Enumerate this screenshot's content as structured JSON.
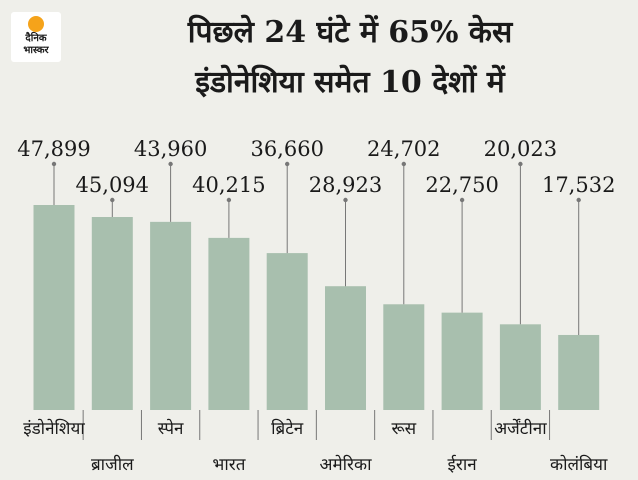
{
  "brand": {
    "logo_line1": "दैनिक",
    "logo_line2": "भास्कर"
  },
  "header": {
    "title_line1": "पिछले 24 घंटे में 65% केस",
    "title_line2": "इंडोनेशिया समेत 10 देशों में"
  },
  "colors": {
    "background": "#efefea",
    "bar": "#a8bfae",
    "leader_line": "#777777",
    "text": "#1a1a1a",
    "logo_sun": "#f5a31a"
  },
  "chart_data": {
    "type": "bar",
    "title": "",
    "xlabel": "",
    "ylabel": "",
    "ylim": [
      0,
      60000
    ],
    "grid": false,
    "categories": [
      "इंडोनेशिया",
      "ब्राजील",
      "स्पेन",
      "भारत",
      "ब्रिटेन",
      "अमेरिका",
      "रूस",
      "ईरान",
      "अर्जेंटीना",
      "कोलंबिया"
    ],
    "values": [
      47899,
      45094,
      43960,
      40215,
      36660,
      28923,
      24702,
      22750,
      20023,
      17532
    ],
    "value_labels": [
      "47,899",
      "45,094",
      "43,960",
      "40,215",
      "36,660",
      "28,923",
      "24,702",
      "22,750",
      "20,023",
      "17,532"
    ]
  }
}
